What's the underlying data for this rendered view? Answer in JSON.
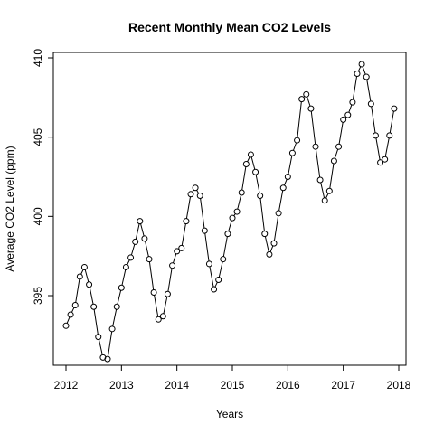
{
  "chart_data": {
    "type": "line",
    "title": "Recent Monthly Mean CO2 Levels",
    "xlabel": "Years",
    "ylabel": "Average CO2 Level (ppm)",
    "xlim": [
      2012,
      2018
    ],
    "ylim": [
      391,
      410
    ],
    "x_ticks": [
      2012,
      2013,
      2014,
      2015,
      2016,
      2017,
      2018
    ],
    "y_ticks": [
      395,
      400,
      405,
      410
    ],
    "grid": false,
    "legend": "none",
    "series": [
      {
        "x": [
          2012.0,
          2012.083,
          2012.167,
          2012.25,
          2012.333,
          2012.417,
          2012.5,
          2012.583,
          2012.667,
          2012.75,
          2012.833,
          2012.917,
          2013.0,
          2013.083,
          2013.167,
          2013.25,
          2013.333,
          2013.417,
          2013.5,
          2013.583,
          2013.667,
          2013.75,
          2013.833,
          2013.917,
          2014.0,
          2014.083,
          2014.167,
          2014.25,
          2014.333,
          2014.417,
          2014.5,
          2014.583,
          2014.667,
          2014.75,
          2014.833,
          2014.917,
          2015.0,
          2015.083,
          2015.167,
          2015.25,
          2015.333,
          2015.417,
          2015.5,
          2015.583,
          2015.667,
          2015.75,
          2015.833,
          2015.917,
          2016.0,
          2016.083,
          2016.167,
          2016.25,
          2016.333,
          2016.417,
          2016.5,
          2016.583,
          2016.667,
          2016.75,
          2016.833,
          2016.917,
          2017.0,
          2017.083,
          2017.167,
          2017.25,
          2017.333,
          2017.417,
          2017.5,
          2017.583,
          2017.667,
          2017.75,
          2017.833,
          2017.917
        ],
        "y": [
          393.1,
          393.8,
          394.4,
          396.2,
          396.8,
          395.7,
          394.3,
          392.4,
          391.1,
          391.0,
          392.9,
          394.3,
          395.5,
          396.8,
          397.4,
          398.4,
          399.7,
          398.6,
          397.3,
          395.2,
          393.5,
          393.7,
          395.1,
          396.9,
          397.8,
          398.0,
          399.7,
          401.4,
          401.8,
          401.3,
          399.1,
          397.0,
          395.4,
          396.0,
          397.3,
          398.9,
          399.9,
          400.3,
          401.5,
          403.3,
          403.9,
          402.8,
          401.3,
          398.9,
          397.6,
          398.3,
          400.2,
          401.8,
          402.5,
          404.0,
          404.8,
          407.4,
          407.7,
          406.8,
          404.4,
          402.3,
          401.0,
          401.6,
          403.5,
          404.4,
          406.1,
          406.4,
          407.2,
          409.0,
          409.6,
          408.8,
          407.1,
          405.1,
          403.4,
          403.6,
          405.1,
          406.8
        ]
      }
    ]
  }
}
